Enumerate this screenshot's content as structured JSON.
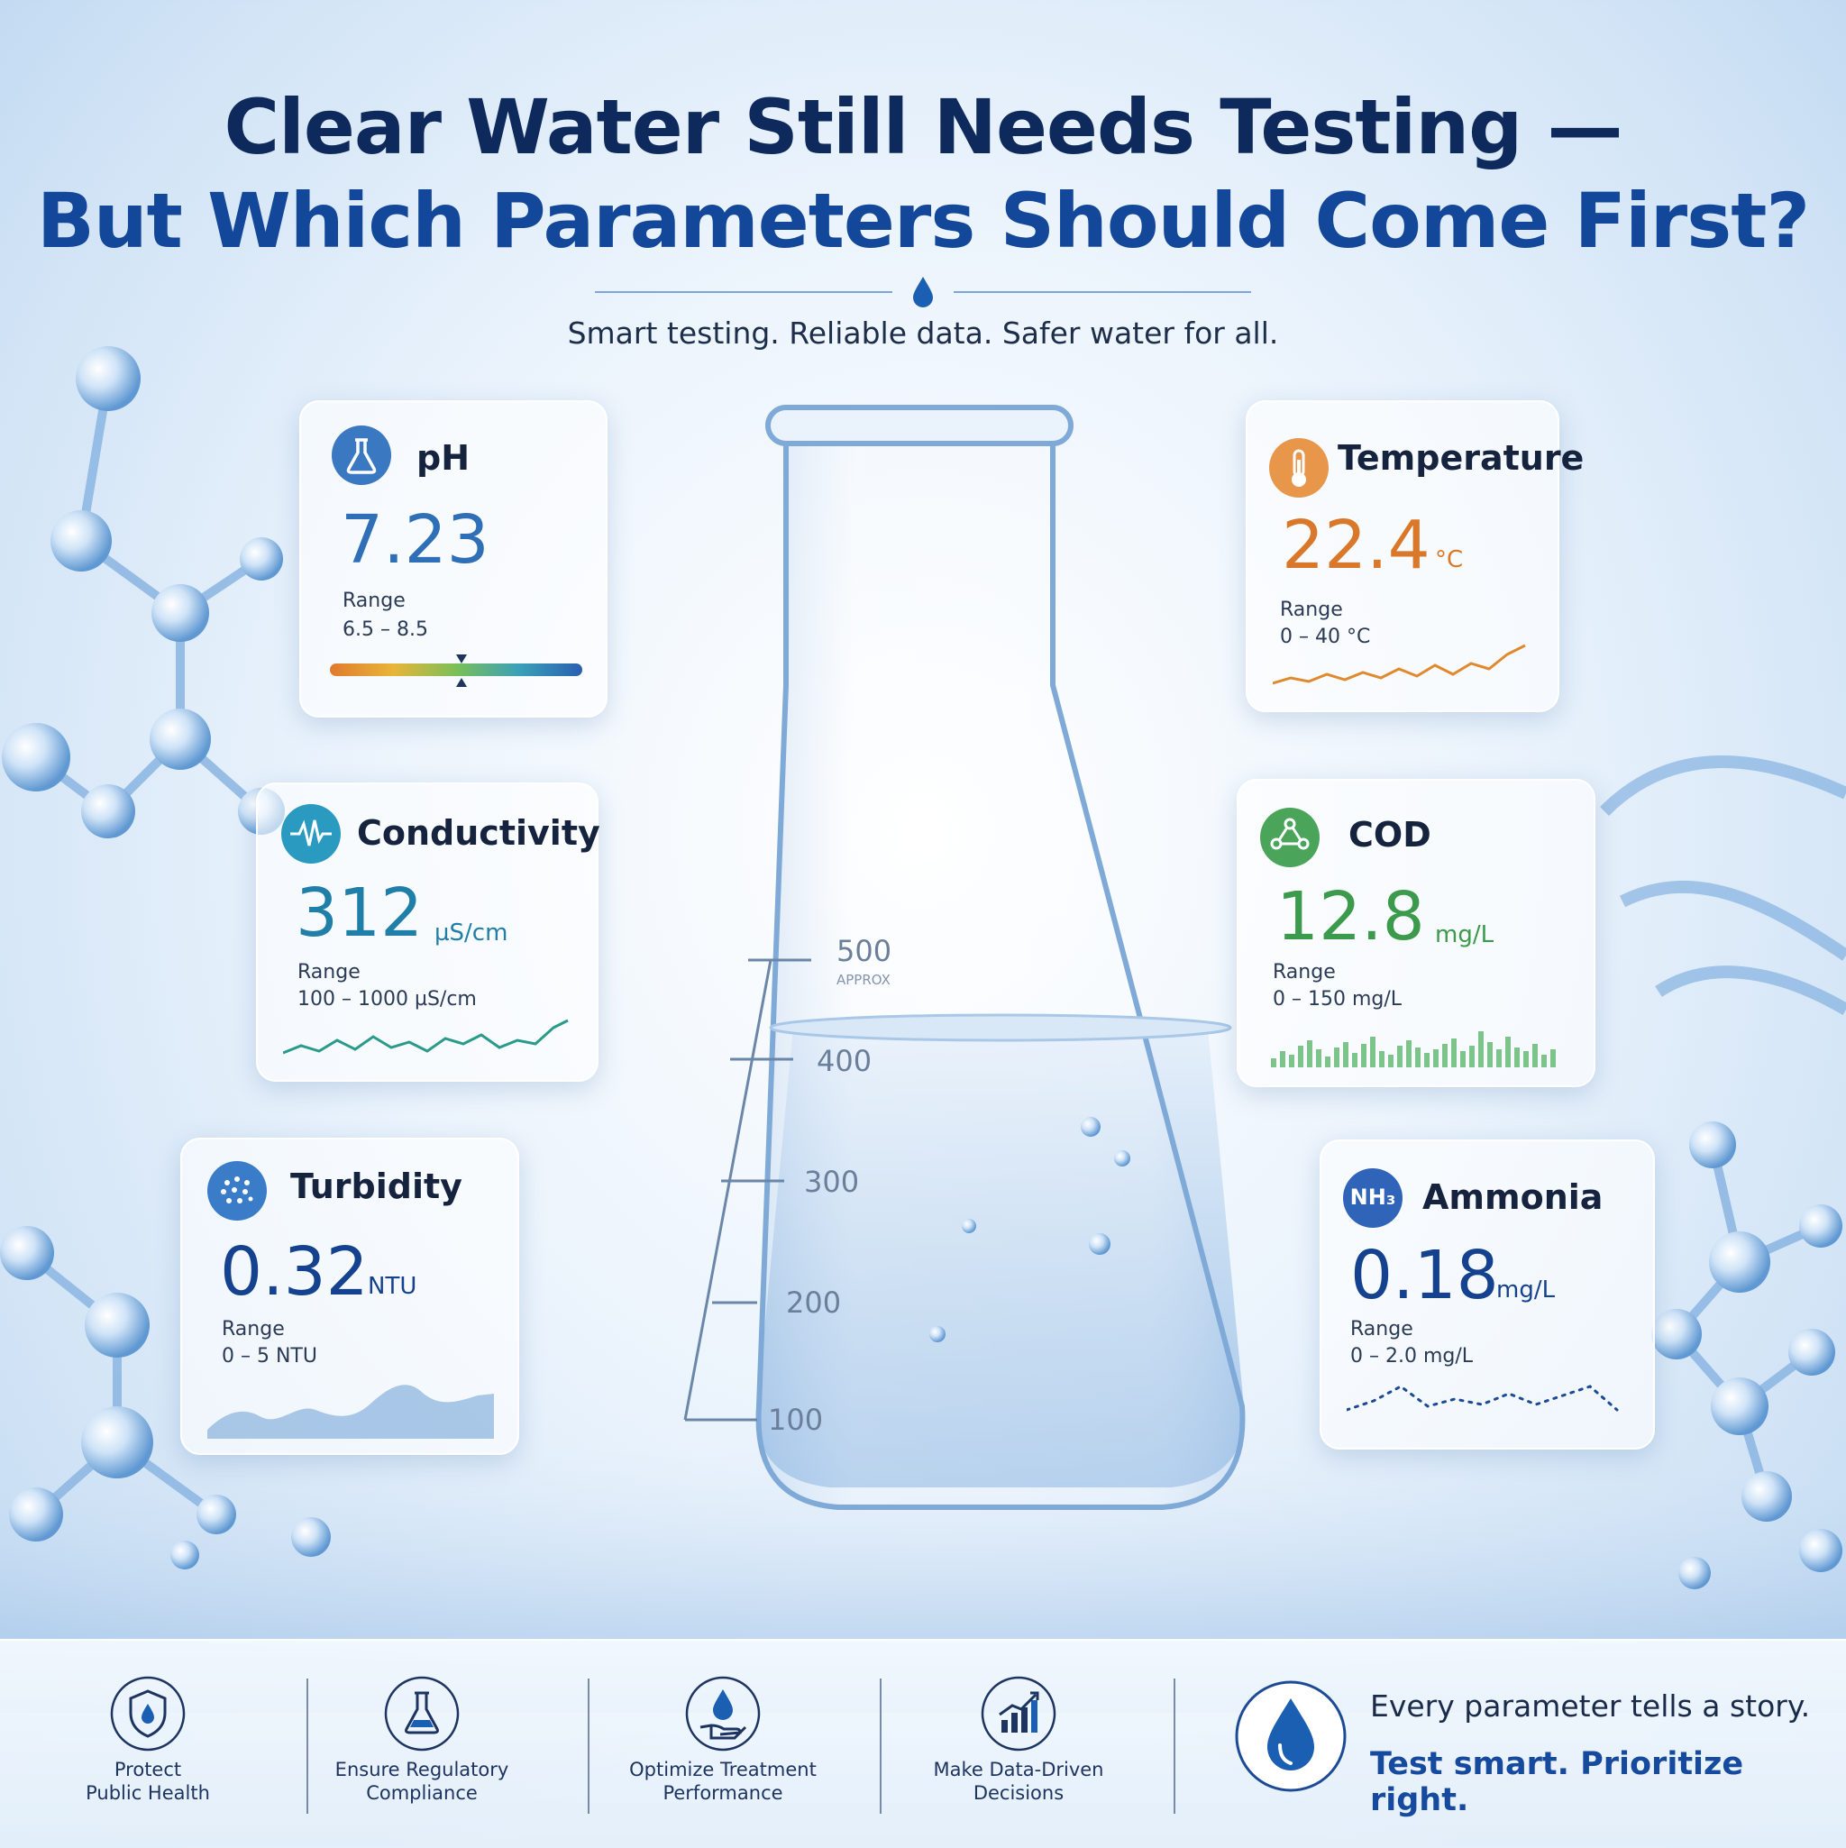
{
  "title": {
    "line1": "Clear Water Still Needs Testing —",
    "line2": "But Which Parameters Should Come First?"
  },
  "tagline": "Smart testing. Reliable data. Safer water for all.",
  "flask": {
    "marks": [
      "500",
      "400",
      "300",
      "200",
      "100"
    ],
    "approx_label": "APPROX"
  },
  "parameters": {
    "ph": {
      "label": "pH",
      "value": "7.23",
      "unit": "",
      "range_label": "Range",
      "range": "6.5 – 8.5",
      "icon": "flask-icon",
      "color": "#2f6fb8",
      "gauge_level": 0.52
    },
    "temperature": {
      "label": "Temperature",
      "value": "22.4",
      "unit": "°C",
      "range_label": "Range",
      "range": "0 – 40 °C",
      "icon": "thermometer-icon",
      "color": "#d9782a"
    },
    "conductivity": {
      "label": "Conductivity",
      "value": "312",
      "unit": "µS/cm",
      "range_label": "Range",
      "range": "100 – 1000 µS/cm",
      "icon": "waveform-icon",
      "color": "#1f7fa8"
    },
    "cod": {
      "label": "COD",
      "value": "12.8",
      "unit": "mg/L",
      "range_label": "Range",
      "range": "0 – 150 mg/L",
      "icon": "molecule-icon",
      "color": "#3b9a4b"
    },
    "turbidity": {
      "label": "Turbidity",
      "value": "0.32",
      "unit": "NTU",
      "range_label": "Range",
      "range": "0 – 5 NTU",
      "icon": "particles-icon",
      "color": "#15428f"
    },
    "ammonia": {
      "label": "Ammonia",
      "value": "0.18",
      "unit": "mg/L",
      "range_label": "Range",
      "range": "0 – 2.0 mg/L",
      "icon": "nh3-icon",
      "icon_text": "NH₃",
      "color": "#15428f"
    }
  },
  "features": [
    {
      "line1": "Protect",
      "line2": "Public Health",
      "icon": "shield-drop-icon"
    },
    {
      "line1": "Ensure Regulatory",
      "line2": "Compliance",
      "icon": "flask-icon"
    },
    {
      "line1": "Optimize Treatment",
      "line2": "Performance",
      "icon": "hand-drop-icon"
    },
    {
      "line1": "Make Data-Driven",
      "line2": "Decisions",
      "icon": "bar-chart-icon"
    }
  ],
  "slogan": {
    "line1": "Every parameter tells a story.",
    "line2": "Test smart. Prioritize right.",
    "icon": "water-drop-icon"
  }
}
